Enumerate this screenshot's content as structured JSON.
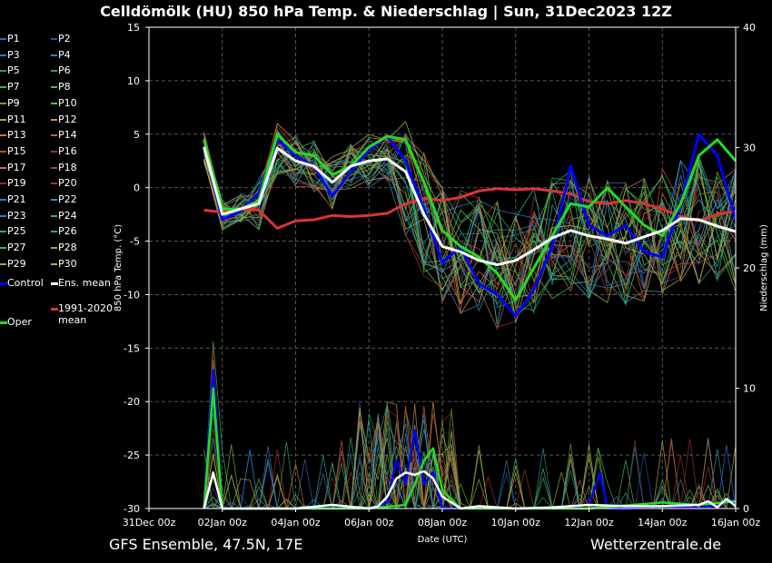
{
  "title": "Celldömölk  (HU)  850 hPa Temp. & Niederschlag | Sun, 31Dec2023 12Z",
  "footer": {
    "left": "GFS Ensemble, 47.5N, 17E",
    "right": "Wetterzentrale.de"
  },
  "legend": {
    "members": [
      "P1",
      "P2",
      "P3",
      "P4",
      "P5",
      "P6",
      "P7",
      "P8",
      "P9",
      "P10",
      "P11",
      "P12",
      "P13",
      "P14",
      "P15",
      "P16",
      "P17",
      "P18",
      "P19",
      "P20",
      "P21",
      "P22",
      "P23",
      "P24",
      "P25",
      "P26",
      "P27",
      "P28",
      "P29",
      "P30"
    ],
    "member_colors": [
      "#3366cc",
      "#2255aa",
      "#2b77cc",
      "#3388aa",
      "#1e9e8e",
      "#22aa66",
      "#33bb55",
      "#55bb33",
      "#66aa22",
      "#44cc44",
      "#aaaa33",
      "#cc9933",
      "#cc7733",
      "#bb6633",
      "#aa5533",
      "#993333",
      "#cc6655",
      "#aa4444",
      "#883322",
      "#aa3322",
      "#4477bb",
      "#3399bb",
      "#2288aa",
      "#33aaaa",
      "#22aa88",
      "#33aa66",
      "#55aa55",
      "#77bb44",
      "#99aa33",
      "#bbaa44"
    ],
    "control": "Control",
    "ens_mean": "Ens. mean",
    "clim_mean_line1": "1991-2020",
    "clim_mean_line2": "mean",
    "oper": "Oper"
  },
  "colors": {
    "control": "#0000ff",
    "ens_mean": "#ffffff",
    "clim_mean": "#dd3333",
    "oper": "#22dd22",
    "grid": "#555555"
  },
  "chart_data": {
    "type": "line",
    "title": "Celldömölk  (HU)  850 hPa Temp. & Niederschlag | Sun, 31Dec2023 12Z",
    "xlabel": "Date (UTC)",
    "ylabel": "850 hPa Temp. (°C)",
    "y2label": "Niederschlag (mm)",
    "xlim": [
      0,
      16
    ],
    "ylim": [
      -30,
      15
    ],
    "y2lim": [
      0,
      40
    ],
    "grid": true,
    "x_ticks": [
      0,
      2,
      4,
      6,
      8,
      10,
      12,
      14,
      16
    ],
    "x_tick_labels": [
      "31Dec 00z",
      "02Jan 00z",
      "04Jan 00z",
      "06Jan 00z",
      "08Jan 00z",
      "10Jan 00z",
      "12Jan 00z",
      "14Jan 00z",
      "16Jan 00z"
    ],
    "y_ticks": [
      15,
      10,
      5,
      0,
      -5,
      -10,
      -15,
      -20,
      -25,
      -30
    ],
    "y2_ticks": [
      40,
      30,
      20,
      10,
      0
    ],
    "series": [
      {
        "name": "1991-2020 mean",
        "x": [
          1.5,
          2,
          2.5,
          3,
          3.5,
          4,
          4.5,
          5,
          5.5,
          6,
          6.5,
          7,
          7.5,
          8,
          8.5,
          9,
          9.5,
          10,
          10.5,
          11,
          11.5,
          12,
          12.5,
          13,
          13.5,
          14,
          14.5,
          15,
          15.5,
          16
        ],
        "values": [
          -2.1,
          -2.3,
          -2,
          -2.1,
          -3.8,
          -3.1,
          -3,
          -2.6,
          -2.7,
          -2.6,
          -2.4,
          -1.5,
          -1,
          -1.2,
          -0.9,
          -0.3,
          -0.1,
          -0.2,
          -0.1,
          -0.3,
          -0.6,
          -1.3,
          -1.5,
          -1.2,
          -1.5,
          -2,
          -2.7,
          -3.1,
          -2.5,
          -2.2
        ]
      },
      {
        "name": "Ens. mean",
        "x": [
          1.5,
          2,
          2.5,
          3,
          3.5,
          4,
          4.5,
          5,
          5.5,
          6,
          6.5,
          7,
          7.5,
          8,
          8.5,
          9,
          9.5,
          10,
          10.5,
          11,
          11.5,
          12,
          12.5,
          13,
          13.5,
          14,
          14.5,
          15,
          15.5,
          16
        ],
        "values": [
          3.8,
          -2.5,
          -2,
          -1.5,
          3.7,
          2.5,
          2,
          0.5,
          2,
          2.5,
          2.7,
          1.5,
          -2.5,
          -5.5,
          -6,
          -6.8,
          -7.2,
          -6.8,
          -5.8,
          -4.7,
          -4,
          -4.5,
          -4.8,
          -5.2,
          -4.6,
          -4,
          -2.9,
          -3,
          -3.6,
          -4.1
        ]
      },
      {
        "name": "Control",
        "x": [
          1.5,
          2,
          2.5,
          3,
          3.5,
          4,
          4.5,
          5,
          5.5,
          6,
          6.5,
          7,
          7.5,
          8,
          8.5,
          9,
          9.5,
          10,
          10.5,
          11,
          11.5,
          12,
          12.5,
          13,
          13.5,
          14,
          14.5,
          15,
          15.5,
          16
        ],
        "values": [
          4,
          -3,
          -2.2,
          -0.5,
          4.5,
          3,
          2,
          -0.8,
          1.5,
          3.5,
          4.8,
          2.5,
          -2,
          -7,
          -5.5,
          -9,
          -10,
          -12,
          -9.5,
          -5.5,
          2,
          -3.5,
          -4.5,
          -3.5,
          -6,
          -6.5,
          -1.5,
          5,
          3,
          -3
        ]
      },
      {
        "name": "Oper",
        "x": [
          1.5,
          2,
          2.5,
          3,
          3.5,
          4,
          4.5,
          5,
          5.5,
          6,
          6.5,
          7,
          7.5,
          8,
          8.5,
          9,
          9.5,
          10,
          10.5,
          11,
          11.5,
          12,
          12.5,
          13,
          13.5,
          14,
          14.5,
          15,
          15.5,
          16
        ],
        "values": [
          4.5,
          -2,
          -2,
          -1.2,
          5,
          3.3,
          3,
          1.2,
          2,
          3.8,
          4.8,
          4.5,
          0.5,
          -4,
          -5.5,
          -6.5,
          -8,
          -10.5,
          -7.5,
          -4.5,
          -1.5,
          -1.8,
          0,
          -1.8,
          -3.5,
          -4.5,
          -1.5,
          3,
          4.5,
          2.5
        ]
      }
    ],
    "precip_series": [
      {
        "name": "Ens. mean",
        "x": [
          1.5,
          1.75,
          2,
          3,
          4,
          5,
          6,
          6.25,
          6.5,
          6.75,
          7,
          7.25,
          7.5,
          7.75,
          8,
          8.5,
          9,
          10,
          11,
          12,
          13,
          14,
          15,
          15.25,
          15.5,
          15.75,
          16
        ],
        "values": [
          0,
          3,
          0,
          0,
          0,
          0.3,
          0,
          0.2,
          1,
          2.5,
          3,
          2.8,
          3.1,
          2.5,
          1,
          0,
          0.2,
          0,
          0.1,
          0.3,
          0.2,
          0.2,
          0.3,
          0.6,
          0.1,
          0.8,
          0.2
        ]
      },
      {
        "name": "Control",
        "x": [
          1.5,
          1.75,
          2,
          3,
          4,
          5,
          6,
          6.5,
          6.75,
          7,
          7.25,
          7.5,
          7.75,
          8,
          9,
          11,
          12,
          12.3,
          12.5,
          13,
          14,
          15,
          15.5,
          16
        ],
        "values": [
          0,
          11.5,
          0,
          0,
          0,
          0,
          0,
          0.5,
          4,
          2,
          6.5,
          2,
          3,
          0,
          0,
          0,
          0.3,
          3,
          0,
          0,
          0.2,
          0,
          0.3,
          0.8
        ]
      },
      {
        "name": "Oper",
        "x": [
          1.5,
          1.75,
          2,
          3,
          4,
          5,
          6,
          7,
          7.25,
          7.5,
          7.75,
          8,
          8.5,
          9,
          12,
          14,
          15,
          16
        ],
        "values": [
          0,
          10,
          0,
          0,
          0,
          0,
          0,
          0.3,
          2,
          4,
          5,
          1.5,
          0,
          0,
          0,
          0.5,
          0.3,
          0.6
        ]
      }
    ]
  }
}
